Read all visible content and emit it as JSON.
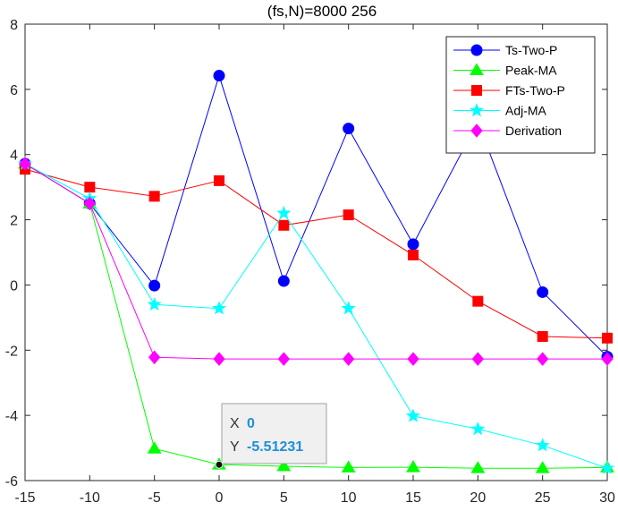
{
  "chart_data": {
    "type": "line",
    "title": "(fs,N)=8000   256",
    "xlabel": "",
    "ylabel": "",
    "xlim": [
      -15,
      30
    ],
    "ylim": [
      -6,
      8
    ],
    "x": [
      -15,
      -10,
      -5,
      0,
      5,
      10,
      15,
      20,
      25,
      30
    ],
    "xticks": [
      "-15",
      "-10",
      "-5",
      "0",
      "5",
      "10",
      "15",
      "20",
      "25",
      "30"
    ],
    "yticks": [
      "-6",
      "-4",
      "-2",
      "0",
      "2",
      "4",
      "6",
      "8"
    ],
    "legend_position": "top-right",
    "series": [
      {
        "name": "Ts-Two-P",
        "color": "#0000ff",
        "marker": "circle",
        "values": [
          3.72,
          2.5,
          -0.02,
          6.42,
          0.12,
          4.8,
          1.25,
          5.0,
          -0.22,
          -2.2
        ]
      },
      {
        "name": "Peak-MA",
        "color": "#00ff00",
        "marker": "triangle",
        "values": [
          3.72,
          2.5,
          -5.02,
          -5.51,
          -5.56,
          -5.6,
          -5.59,
          -5.62,
          -5.62,
          -5.6
        ]
      },
      {
        "name": "FTs-Two-P",
        "color": "#ff0000",
        "marker": "square",
        "values": [
          3.55,
          3.0,
          2.72,
          3.2,
          1.83,
          2.15,
          0.92,
          -0.5,
          -1.58,
          -1.63
        ]
      },
      {
        "name": "Adj-MA",
        "color": "#00ffff",
        "marker": "star",
        "values": [
          3.72,
          2.65,
          -0.6,
          -0.72,
          2.2,
          -0.72,
          -4.02,
          -4.42,
          -4.92,
          -5.62
        ]
      },
      {
        "name": "Derivation",
        "color": "#ff00ff",
        "marker": "diamond",
        "values": [
          3.72,
          2.5,
          -2.22,
          -2.27,
          -2.27,
          -2.27,
          -2.27,
          -2.27,
          -2.27,
          -2.27
        ]
      }
    ],
    "datatip": {
      "x_label": "X",
      "x_value": "0",
      "y_label": "Y",
      "y_value": "-5.51231",
      "point": [
        0,
        -5.51231
      ]
    }
  }
}
